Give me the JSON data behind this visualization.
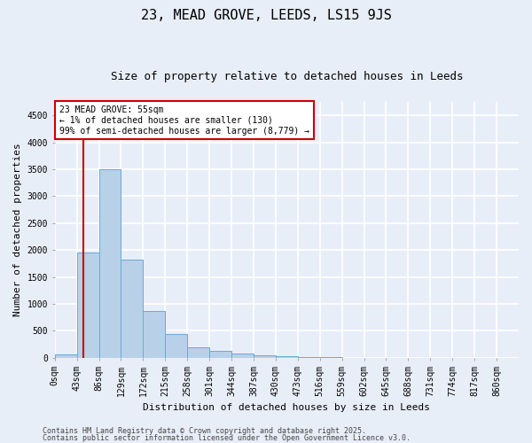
{
  "title": "23, MEAD GROVE, LEEDS, LS15 9JS",
  "subtitle": "Size of property relative to detached houses in Leeds",
  "xlabel": "Distribution of detached houses by size in Leeds",
  "ylabel": "Number of detached properties",
  "bar_color": "#b8d0e8",
  "bar_edge_color": "#6aaad4",
  "categories": [
    "0sqm",
    "43sqm",
    "86sqm",
    "129sqm",
    "172sqm",
    "215sqm",
    "258sqm",
    "301sqm",
    "344sqm",
    "387sqm",
    "430sqm",
    "473sqm",
    "516sqm",
    "559sqm",
    "602sqm",
    "645sqm",
    "688sqm",
    "731sqm",
    "774sqm",
    "817sqm",
    "860sqm"
  ],
  "values": [
    55,
    1950,
    3500,
    1820,
    860,
    435,
    200,
    125,
    80,
    48,
    22,
    12,
    6,
    3,
    2,
    1,
    1,
    1,
    0,
    0,
    0
  ],
  "ylim": [
    0,
    4750
  ],
  "yticks": [
    0,
    500,
    1000,
    1500,
    2000,
    2500,
    3000,
    3500,
    4000,
    4500
  ],
  "annotation_title": "23 MEAD GROVE: 55sqm",
  "annotation_line1": "← 1% of detached houses are smaller (130)",
  "annotation_line2": "99% of semi-detached houses are larger (8,779) →",
  "footer1": "Contains HM Land Registry data © Crown copyright and database right 2025.",
  "footer2": "Contains public sector information licensed under the Open Government Licence v3.0.",
  "background_color": "#e8eef8",
  "plot_bg_color": "#e8eef8",
  "grid_color": "#ffffff",
  "annotation_box_facecolor": "#ffffff",
  "annotation_box_edgecolor": "#cc0000",
  "red_line_color": "#cc0000",
  "title_fontsize": 11,
  "subtitle_fontsize": 9,
  "ylabel_fontsize": 8,
  "xlabel_fontsize": 8,
  "tick_fontsize": 7,
  "annotation_fontsize": 7,
  "footer_fontsize": 6
}
